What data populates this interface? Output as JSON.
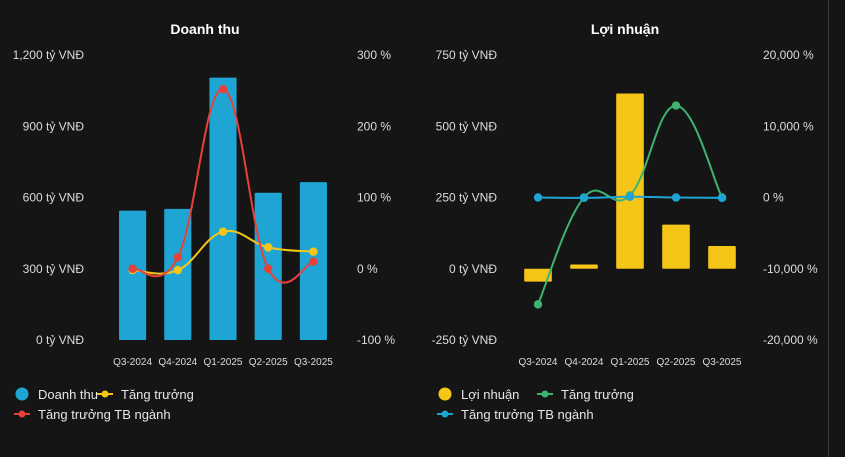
{
  "chart_data": [
    {
      "type": "bar",
      "title": "Doanh thu",
      "categories": [
        "Q3-2024",
        "Q4-2024",
        "Q1-2025",
        "Q2-2025",
        "Q3-2025"
      ],
      "y_left": {
        "ticks": [
          "1,200 tỷ VNĐ",
          "900 tỷ VNĐ",
          "600 tỷ VNĐ",
          "300 tỷ VNĐ",
          "0 tỷ VNĐ"
        ],
        "range": [
          0,
          1200
        ],
        "unit": "tỷ VNĐ"
      },
      "y_right": {
        "ticks": [
          "300 %",
          "200 %",
          "100 %",
          "0 %",
          "-100 %"
        ],
        "range": [
          -100,
          300
        ],
        "unit": "%"
      },
      "series": [
        {
          "name": "Doanh thu",
          "kind": "bar",
          "axis": "left",
          "color": "#1ea5d4",
          "values": [
            545,
            552,
            1105,
            620,
            665
          ]
        },
        {
          "name": "Tăng trưởng",
          "kind": "line",
          "axis": "right",
          "color": "#f5c518",
          "values": [
            -2,
            -2,
            52,
            30,
            24
          ]
        },
        {
          "name": "Tăng trưởng TB ngành",
          "kind": "line",
          "axis": "right",
          "color": "#e8403a",
          "values": [
            0,
            16,
            252,
            0,
            10
          ]
        }
      ],
      "legend": [
        {
          "label": "Doanh thu",
          "marker": "dot",
          "color": "#1ea5d4"
        },
        {
          "label": "Tăng trưởng",
          "marker": "line-dot",
          "color": "#f5c518"
        },
        {
          "label": "Tăng trưởng TB ngành",
          "marker": "line-dot",
          "color": "#e8403a"
        }
      ],
      "legend_position": "bottom",
      "grid": false
    },
    {
      "type": "bar",
      "title": "Lợi nhuận",
      "categories": [
        "Q3-2024",
        "Q4-2024",
        "Q1-2025",
        "Q2-2025",
        "Q3-2025"
      ],
      "y_left": {
        "ticks": [
          "750 tỷ VNĐ",
          "500 tỷ VNĐ",
          "250 tỷ VNĐ",
          "0 tỷ VNĐ",
          "-250 tỷ VNĐ"
        ],
        "range": [
          -250,
          750
        ],
        "unit": "tỷ VNĐ"
      },
      "y_right": {
        "ticks": [
          "20,000 %",
          "10,000 %",
          "0 %",
          "-10,000 %",
          "-20,000 %"
        ],
        "range": [
          -20000,
          20000
        ],
        "unit": "%"
      },
      "series": [
        {
          "name": "Lợi nhuận",
          "kind": "bar",
          "axis": "left",
          "color": "#f5c518",
          "values": [
            -45,
            15,
            615,
            155,
            80
          ]
        },
        {
          "name": "Tăng trưởng",
          "kind": "line",
          "axis": "right",
          "color": "#3cb371",
          "values": [
            -15000,
            0,
            300,
            12900,
            0
          ]
        },
        {
          "name": "Tăng trưởng TB ngành",
          "kind": "line",
          "axis": "right",
          "color": "#1ea5d4",
          "values": [
            0,
            -50,
            100,
            0,
            -50
          ]
        }
      ],
      "legend": [
        {
          "label": "Lợi nhuận",
          "marker": "dot",
          "color": "#f5c518"
        },
        {
          "label": "Tăng trưởng",
          "marker": "line-dot",
          "color": "#3cb371"
        },
        {
          "label": "Tăng trưởng TB ngành",
          "marker": "line-dot",
          "color": "#1ea5d4"
        }
      ],
      "legend_position": "bottom",
      "grid": false
    }
  ]
}
